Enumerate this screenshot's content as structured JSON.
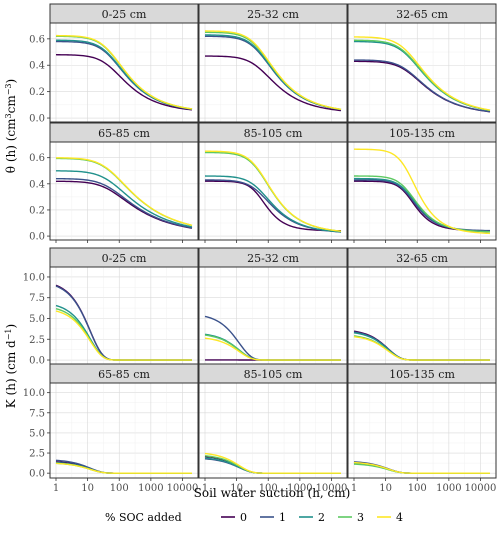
{
  "chart_data": [
    {
      "type": "line",
      "ylabel_main": "θ (h) (cm",
      "ylabel_sup1": "3",
      "ylabel_mid": "cm",
      "ylabel_sup2": "−3",
      "ylabel_end": ")",
      "ylim": [
        -0.03,
        0.72
      ],
      "yticks": [
        0.0,
        0.2,
        0.4,
        0.6
      ],
      "ytick_labels": [
        "0.0",
        "0.2",
        "0.4",
        "0.6"
      ],
      "x_scale": "log",
      "xlim": [
        1,
        20000
      ],
      "panels": [
        {
          "title": "0-25 cm",
          "series": [
            {
              "soc": "0",
              "params": [
                0.04,
                0.48,
                1.5
              ]
            },
            {
              "soc": "1",
              "params": [
                0.04,
                0.58,
                1.5
              ]
            },
            {
              "soc": "2",
              "params": [
                0.04,
                0.59,
                1.5
              ]
            },
            {
              "soc": "3",
              "params": [
                0.04,
                0.62,
                1.5
              ]
            },
            {
              "soc": "4",
              "params": [
                0.04,
                0.625,
                1.5
              ]
            }
          ]
        },
        {
          "title": "25-32 cm",
          "series": [
            {
              "soc": "0",
              "params": [
                0.035,
                0.47,
                1.5
              ]
            },
            {
              "soc": "1",
              "params": [
                0.035,
                0.62,
                1.5
              ]
            },
            {
              "soc": "2",
              "params": [
                0.035,
                0.63,
                1.5
              ]
            },
            {
              "soc": "3",
              "params": [
                0.035,
                0.65,
                1.5
              ]
            },
            {
              "soc": "4",
              "params": [
                0.035,
                0.66,
                1.5
              ]
            }
          ]
        },
        {
          "title": "32-65 cm",
          "series": [
            {
              "soc": "0",
              "params": [
                0.02,
                0.43,
                1.45
              ]
            },
            {
              "soc": "1",
              "params": [
                0.02,
                0.44,
                1.45
              ]
            },
            {
              "soc": "2",
              "params": [
                0.02,
                0.58,
                1.45
              ]
            },
            {
              "soc": "3",
              "params": [
                0.02,
                0.59,
                1.45
              ]
            },
            {
              "soc": "4",
              "params": [
                0.02,
                0.615,
                1.45
              ]
            }
          ]
        },
        {
          "title": "65-85 cm",
          "series": [
            {
              "soc": "0",
              "params": [
                0.01,
                0.42,
                1.35
              ]
            },
            {
              "soc": "1",
              "params": [
                0.01,
                0.44,
                1.35
              ]
            },
            {
              "soc": "2",
              "params": [
                0.01,
                0.5,
                1.35
              ]
            },
            {
              "soc": "3",
              "params": [
                0.01,
                0.595,
                1.35
              ]
            },
            {
              "soc": "4",
              "params": [
                0.01,
                0.6,
                1.35
              ]
            }
          ]
        },
        {
          "title": "85-105 cm",
          "series": [
            {
              "soc": "0",
              "params": [
                0.04,
                0.42,
                2.0
              ]
            },
            {
              "soc": "1",
              "params": [
                0.02,
                0.43,
                1.6
              ]
            },
            {
              "soc": "2",
              "params": [
                0.02,
                0.46,
                1.6
              ]
            },
            {
              "soc": "3",
              "params": [
                0.02,
                0.64,
                1.6
              ]
            },
            {
              "soc": "4",
              "params": [
                0.02,
                0.65,
                1.6
              ]
            }
          ]
        },
        {
          "title": "105-135 cm",
          "series": [
            {
              "soc": "0",
              "params": [
                0.04,
                0.42,
                2.0
              ]
            },
            {
              "soc": "1",
              "params": [
                0.04,
                0.43,
                1.9
              ]
            },
            {
              "soc": "2",
              "params": [
                0.03,
                0.44,
                1.8
              ]
            },
            {
              "soc": "3",
              "params": [
                0.03,
                0.46,
                1.8
              ]
            },
            {
              "soc": "4",
              "params": [
                0.015,
                0.665,
                1.8
              ]
            }
          ]
        }
      ]
    },
    {
      "type": "line",
      "ylabel_main": "K (h) (cm d",
      "ylabel_sup1": "−1",
      "ylabel_end": ")",
      "ylim": [
        -0.6,
        11.2
      ],
      "yticks": [
        0.0,
        2.5,
        5.0,
        7.5,
        10.0
      ],
      "ytick_labels": [
        "0.0",
        "2.5",
        "5.0",
        "7.5",
        "10.0"
      ],
      "x_scale": "log",
      "xlim": [
        1,
        20000
      ],
      "panels": [
        {
          "title": "0-25 cm",
          "series": [
            {
              "soc": "0",
              "k0": 9.6
            },
            {
              "soc": "1",
              "k0": 9.5
            },
            {
              "soc": "2",
              "k0": 7.0
            },
            {
              "soc": "3",
              "k0": 6.6
            },
            {
              "soc": "4",
              "k0": 6.3
            }
          ]
        },
        {
          "title": "25-32 cm",
          "series": [
            {
              "soc": "0",
              "k0": 0.01
            },
            {
              "soc": "1",
              "k0": 5.6
            },
            {
              "soc": "2",
              "k0": 3.3
            },
            {
              "soc": "3",
              "k0": 3.2
            },
            {
              "soc": "4",
              "k0": 2.8
            }
          ]
        },
        {
          "title": "32-65 cm",
          "series": [
            {
              "soc": "0",
              "k0": 3.7
            },
            {
              "soc": "1",
              "k0": 3.6
            },
            {
              "soc": "2",
              "k0": 3.5
            },
            {
              "soc": "3",
              "k0": 3.1
            },
            {
              "soc": "4",
              "k0": 3.0
            }
          ]
        },
        {
          "title": "65-85 cm",
          "series": [
            {
              "soc": "0",
              "k0": 1.5
            },
            {
              "soc": "1",
              "k0": 1.7
            },
            {
              "soc": "2",
              "k0": 1.4
            },
            {
              "soc": "3",
              "k0": 1.3
            },
            {
              "soc": "4",
              "k0": 1.3
            }
          ]
        },
        {
          "title": "85-105 cm",
          "series": [
            {
              "soc": "0",
              "k0": 2.2
            },
            {
              "soc": "1",
              "k0": 1.9
            },
            {
              "soc": "2",
              "k0": 2.0
            },
            {
              "soc": "3",
              "k0": 2.3
            },
            {
              "soc": "4",
              "k0": 2.6
            }
          ]
        },
        {
          "title": "105-135 cm",
          "series": [
            {
              "soc": "0",
              "k0": 1.4
            },
            {
              "soc": "1",
              "k0": 1.5
            },
            {
              "soc": "2",
              "k0": 1.3
            },
            {
              "soc": "3",
              "k0": 1.2
            },
            {
              "soc": "4",
              "k0": 1.4
            }
          ]
        }
      ]
    }
  ],
  "x_axis": {
    "title": "Soil water suction (h, cm)",
    "ticks": [
      1,
      10,
      100,
      1000,
      10000
    ],
    "tick_labels": [
      "1",
      "10",
      "100",
      "1000",
      "10000"
    ]
  },
  "legend": {
    "title": "% SOC added",
    "position": "bottom",
    "entries": [
      {
        "label": "0",
        "color": "#440154"
      },
      {
        "label": "1",
        "color": "#3b528b"
      },
      {
        "label": "2",
        "color": "#21918c"
      },
      {
        "label": "3",
        "color": "#5ec962"
      },
      {
        "label": "4",
        "color": "#fde725"
      }
    ]
  }
}
